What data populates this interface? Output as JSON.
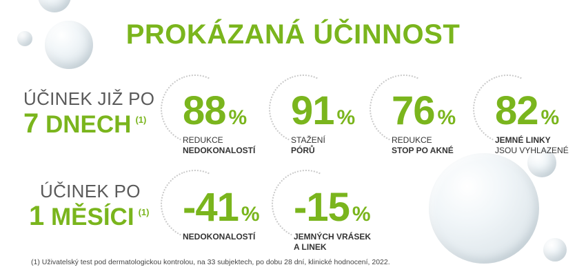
{
  "title": "PROKÁZANÁ ÚČINNOST",
  "row1": {
    "label_line1": "ÚČINEK JIŽ PO",
    "label_number": "7",
    "label_word": "DNECH",
    "label_note": "(1)",
    "stats": [
      {
        "value": "88",
        "unit": "%",
        "desc_line1": "REDUKCE",
        "desc_line2": "NEDOKONALOSTÍ"
      },
      {
        "value": "91",
        "unit": "%",
        "desc_line1": "STAŽENÍ",
        "desc_line2": "PÓRŮ"
      },
      {
        "value": "76",
        "unit": "%",
        "desc_line1": "REDUKCE",
        "desc_line2": "STOP PO AKNÉ"
      },
      {
        "value": "82",
        "unit": "%",
        "desc_line1": "JEMNÉ LINKY",
        "desc_line2": "JSOU VYHLAZENÉ"
      }
    ]
  },
  "row2": {
    "label_line1": "ÚČINEK PO",
    "label_number": "1",
    "label_word": "MĚSÍCI",
    "label_note": "(1)",
    "stats": [
      {
        "value": "-41",
        "unit": "%",
        "desc_line1": "NEDOKONALOSTÍ",
        "desc_line2": ""
      },
      {
        "value": "-15",
        "unit": "%",
        "desc_line1": "JEMNÝCH VRÁSEK",
        "desc_line2": "A LINEK"
      }
    ]
  },
  "footnote": "(1) Uživatelský test pod dermatologickou kontrolou, na 33 subjektech, po dobu 28 dní, klinické hodnocení, 2022.",
  "colors": {
    "accent": "#7ab51d",
    "text": "#5a5a5a"
  }
}
